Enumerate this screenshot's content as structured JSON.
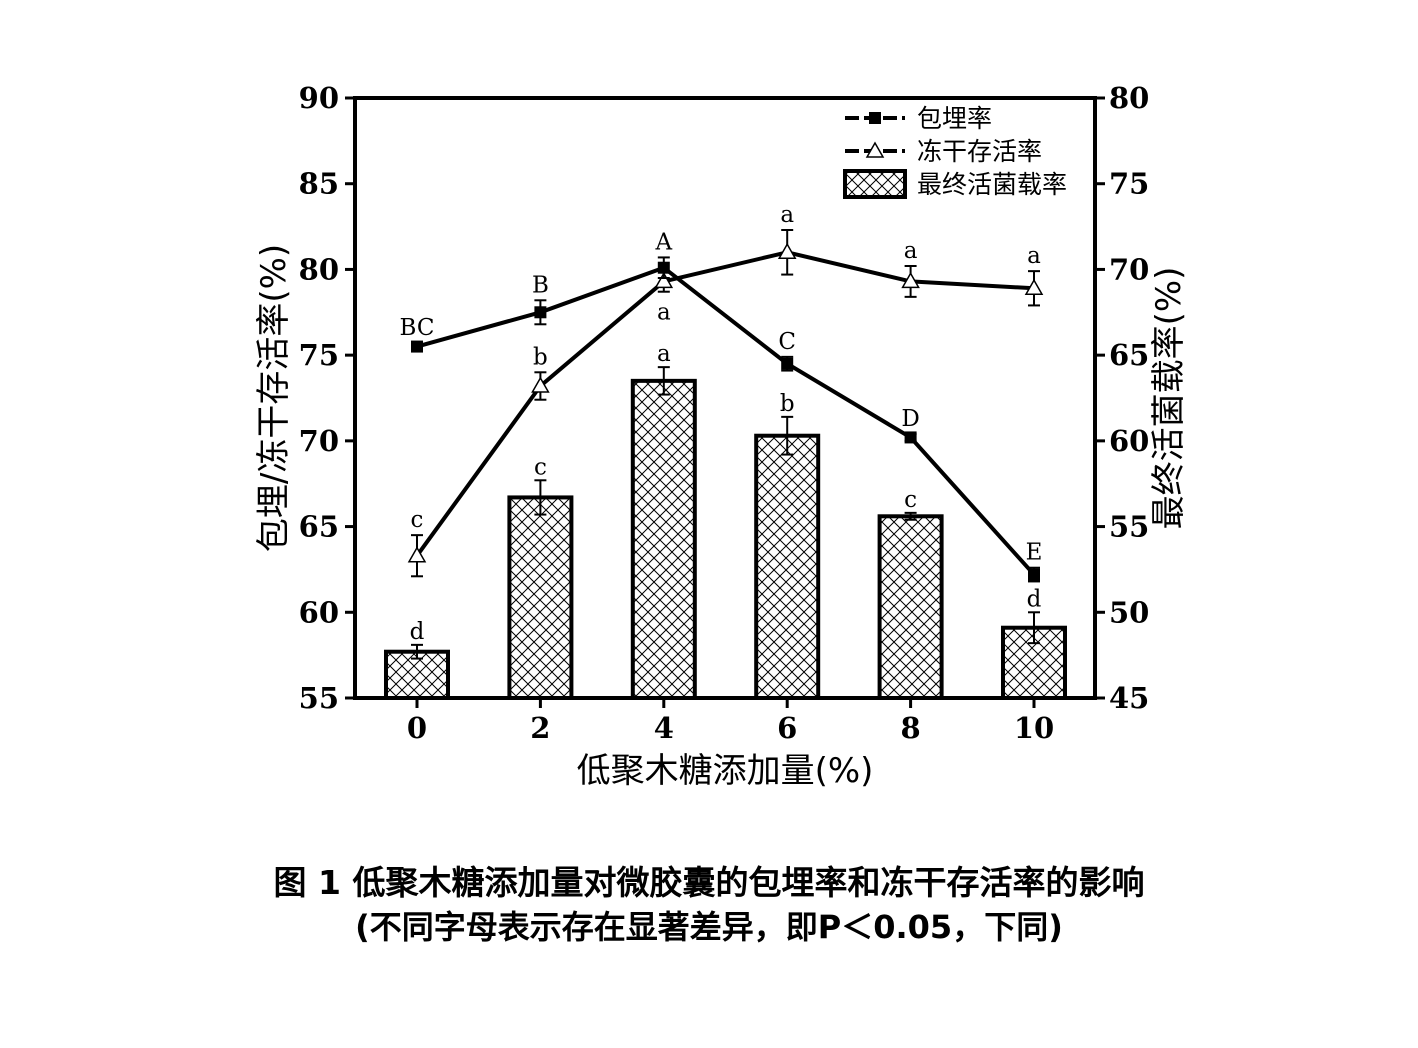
{
  "chart_data": {
    "type": "bar+line",
    "categories": [
      "0",
      "2",
      "4",
      "6",
      "8",
      "10"
    ],
    "xlabel": "低聚木糖添加量(%)",
    "ylabel_left": "包埋/冻干存活率(%)",
    "ylabel_right": "最终活菌载率(%)",
    "ylim_left": [
      55,
      90
    ],
    "ylim_right": [
      45,
      80
    ],
    "yticks_left": [
      "55",
      "60",
      "65",
      "70",
      "75",
      "80",
      "85",
      "90"
    ],
    "yticks_right": [
      "45",
      "50",
      "55",
      "60",
      "65",
      "70",
      "75",
      "80"
    ],
    "legend_position": "top-right",
    "series": [
      {
        "name": "包埋率",
        "kind": "line-square",
        "axis": "left",
        "values": [
          75.5,
          77.5,
          80.1,
          74.5,
          70.2,
          62.2
        ],
        "errors": [
          0.2,
          0.7,
          0.6,
          0.4,
          0.2,
          0.4
        ],
        "letters": [
          "BC",
          "B",
          "A",
          "C",
          "D",
          "E"
        ]
      },
      {
        "name": "冻干存活率",
        "kind": "line-triangle",
        "axis": "left",
        "values": [
          63.3,
          73.2,
          79.3,
          81.0,
          79.3,
          78.9
        ],
        "errors": [
          1.2,
          0.8,
          0.6,
          1.3,
          0.9,
          1.0
        ],
        "letters": [
          "c",
          "b",
          "a",
          "a",
          "a",
          "a"
        ]
      },
      {
        "name": "最终活菌载率",
        "kind": "bar-hatched",
        "axis": "right",
        "values": [
          47.7,
          56.7,
          63.5,
          60.3,
          55.6,
          49.1
        ],
        "errors": [
          0.4,
          1.0,
          0.8,
          1.1,
          0.2,
          0.9
        ],
        "letters": [
          "d",
          "c",
          "a",
          "b",
          "c",
          "d"
        ]
      }
    ]
  },
  "caption": {
    "line1": "图 1  低聚木糖添加量对微胶囊的包埋率和冻干存活率的影响",
    "line2": "(不同字母表示存在显著差异，即P＜0.05，下同)"
  }
}
